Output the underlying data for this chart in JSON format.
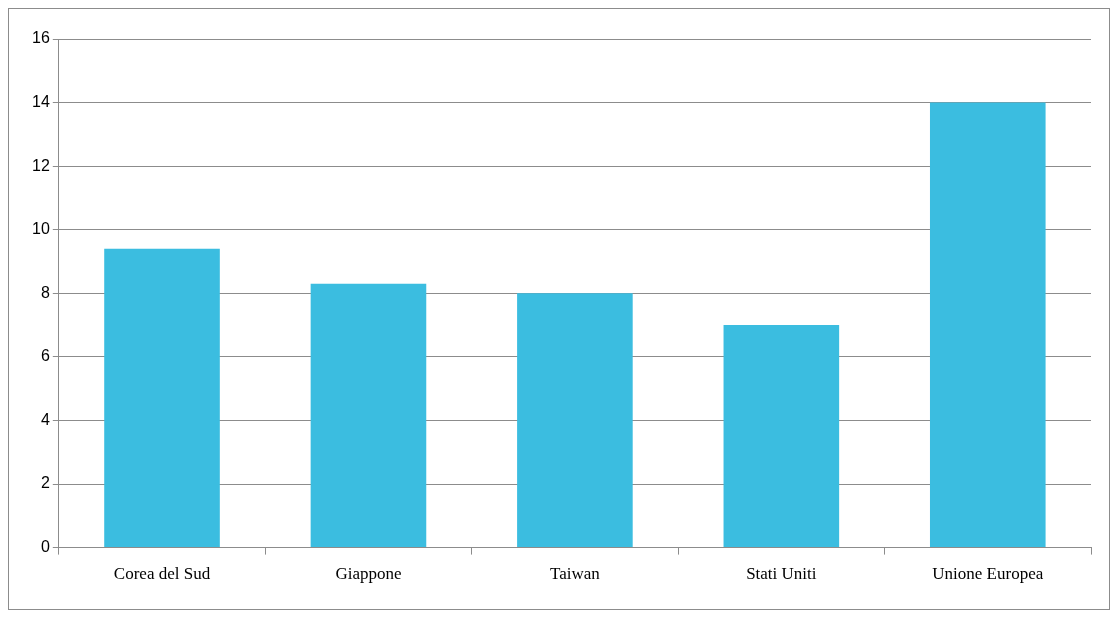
{
  "chart_data": {
    "type": "bar",
    "categories": [
      "Corea del Sud",
      "Giappone",
      "Taiwan",
      "Stati Uniti",
      "Unione Europea"
    ],
    "values": [
      9.4,
      8.3,
      8.0,
      7.0,
      14.0
    ],
    "color": "#3bbde0",
    "ylim": [
      0,
      16
    ],
    "yticks": [
      0,
      2,
      4,
      6,
      8,
      10,
      12,
      14,
      16
    ],
    "grid": "y",
    "legend": false
  }
}
